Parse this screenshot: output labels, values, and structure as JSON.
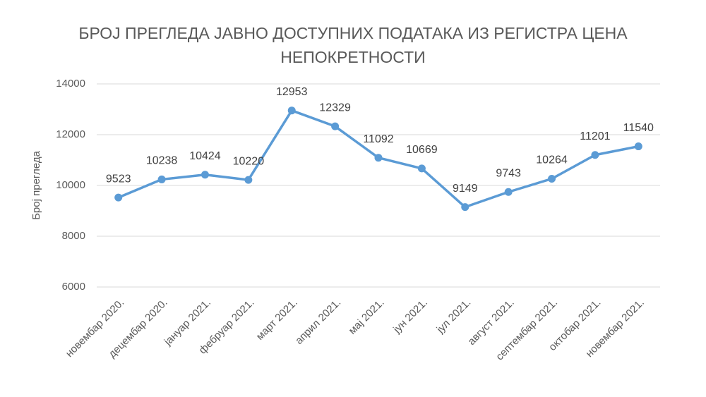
{
  "chart_data": {
    "type": "line",
    "title": "БРОЈ ПРЕГЛЕДА ЈАВНО ДОСТУПНИХ ПОДАТАКА ИЗ РЕГИСТРА ЦЕНА НЕПОКРЕТНОСТИ",
    "y_label": "Број прегледа",
    "categories": [
      "новембар 2020.",
      "децембар 2020.",
      "јануар 2021.",
      "фебруар 2021.",
      "март 2021.",
      "април 2021.",
      "мај 2021.",
      "јун 2021.",
      "јул 2021.",
      "август 2021.",
      "септембар 2021.",
      "октобар 2021.",
      "новембар 2021."
    ],
    "values": [
      9523,
      10238,
      10424,
      10220,
      12953,
      12329,
      11092,
      10669,
      9149,
      9743,
      10264,
      11201,
      11540
    ],
    "color": "#5b9bd5",
    "ylim": [
      6000,
      14000
    ],
    "yticks": [
      6000,
      8000,
      10000,
      12000,
      14000
    ],
    "grid": true
  }
}
